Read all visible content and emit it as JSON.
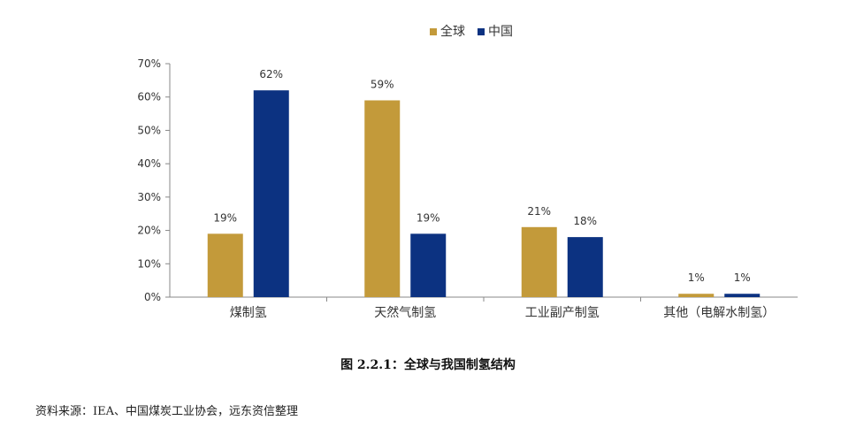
{
  "chart_data": {
    "type": "bar",
    "categories": [
      "煤制氢",
      "天然气制氢",
      "工业副产制氢",
      "其他（电解水制氢）"
    ],
    "series": [
      {
        "name": "全球",
        "values": [
          19,
          59,
          21,
          1
        ],
        "labels": [
          "19%",
          "59%",
          "21%",
          "1%"
        ],
        "color": "#C39A3A"
      },
      {
        "name": "中国",
        "values": [
          62,
          19,
          18,
          1
        ],
        "labels": [
          "62%",
          "19%",
          "18%",
          "1%"
        ],
        "color": "#0C3281"
      }
    ],
    "yticks": [
      "0%",
      "10%",
      "20%",
      "30%",
      "40%",
      "50%",
      "60%",
      "70%"
    ],
    "ylim": [
      0,
      70
    ],
    "legend_position": "top-center",
    "grid": false
  },
  "caption": "图 2.2.1：全球与我国制氢结构",
  "source": "资料来源：IEA、中国煤炭工业协会，远东资信整理"
}
